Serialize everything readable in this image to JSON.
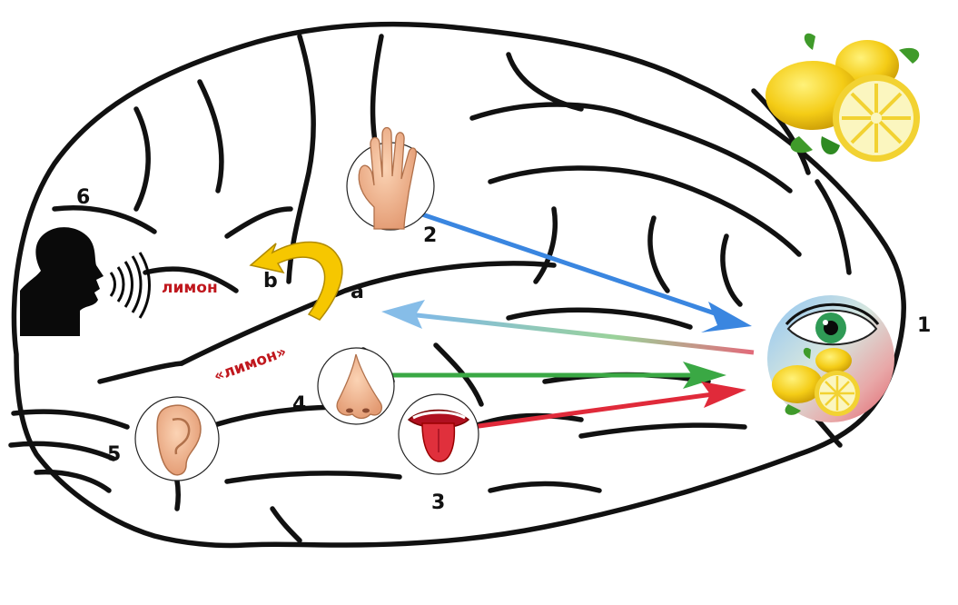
{
  "labels": {
    "n1": "1",
    "n2": "2",
    "n3": "3",
    "n4": "4",
    "n5": "5",
    "n6": "6",
    "a": "a",
    "b": "b",
    "word_spoken": "лимон",
    "word_quoted": "«лимон»"
  },
  "icons": {
    "lemons": "lemons-icon",
    "hand": "hand-icon",
    "eye": "eye-icon",
    "nose": "nose-icon",
    "tongue": "tongue-icon",
    "ear": "ear-icon",
    "speaker": "speaking-head-icon",
    "curved_arrow": "curved-arrow-icon"
  },
  "colors": {
    "touch_arrow": "#3a86e0",
    "smell_arrow": "#3aa844",
    "taste_arrow": "#e02a3a",
    "return_arrow": "#9cc7ea",
    "word_color": "#c0181e",
    "curved_arrow": "#f6c700"
  }
}
